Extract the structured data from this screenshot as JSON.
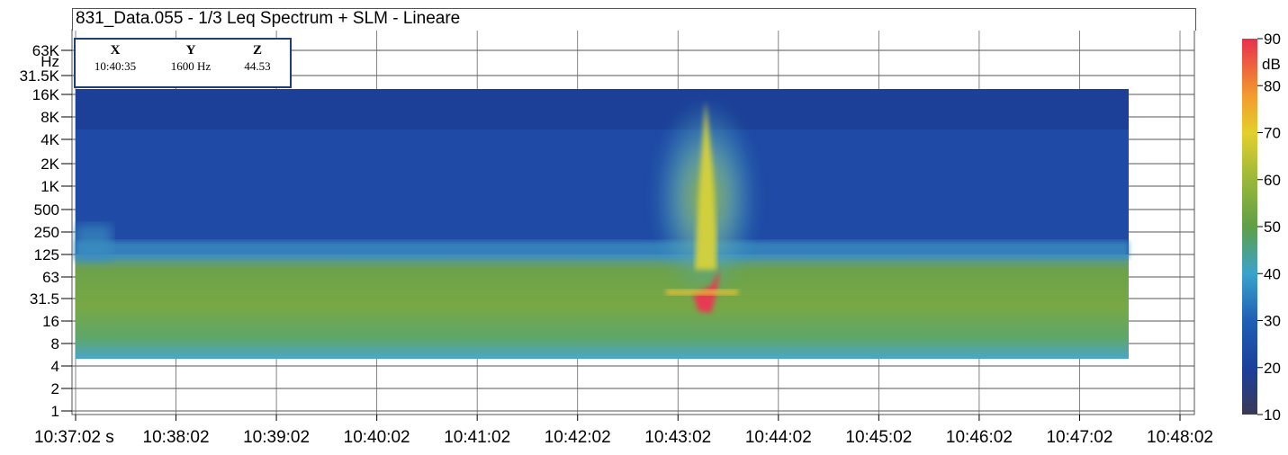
{
  "chart_data": {
    "type": "heatmap",
    "title": "831_Data.055 - 1/3 Leq Spectrum + SLM - Lineare",
    "x_tick_labels": [
      "10:37:02 s",
      "10:38:02",
      "10:39:02",
      "10:40:02",
      "10:41:02",
      "10:42:02",
      "10:43:02",
      "10:44:02",
      "10:45:02",
      "10:46:02",
      "10:47:02",
      "10:48:02"
    ],
    "x_range": [
      "10:37:02",
      "10:48:02"
    ],
    "data_x_range": [
      "10:37:02",
      "10:47:42"
    ],
    "y_tick_labels": [
      "63K",
      "Hz",
      "31.5K",
      "16K",
      "8K",
      "4K",
      "2K",
      "1K",
      "500",
      "250",
      "125",
      "63",
      "31.5",
      "16",
      "8",
      "4",
      "2",
      "1"
    ],
    "y_scale": "log",
    "y_unit": "Hz",
    "data_y_range": [
      6.3,
      20000
    ],
    "colorbar": {
      "unit": "dB",
      "range": [
        10,
        90
      ],
      "tick_labels": [
        "90",
        "80",
        "70",
        "60",
        "50",
        "40",
        "30",
        "20",
        "10"
      ],
      "colors": [
        "#3a3a55",
        "#1c3f9a",
        "#1f5fb5",
        "#3aa3cc",
        "#5f9f46",
        "#9ab83a",
        "#e4cf2c",
        "#f29a2e",
        "#e8304c"
      ]
    },
    "cursor": {
      "x_label": "X",
      "x_value": "10:40:35",
      "y_label": "Y",
      "y_value": "1600 Hz",
      "z_label": "Z",
      "z_value": "44.53"
    },
    "grid": true
  }
}
